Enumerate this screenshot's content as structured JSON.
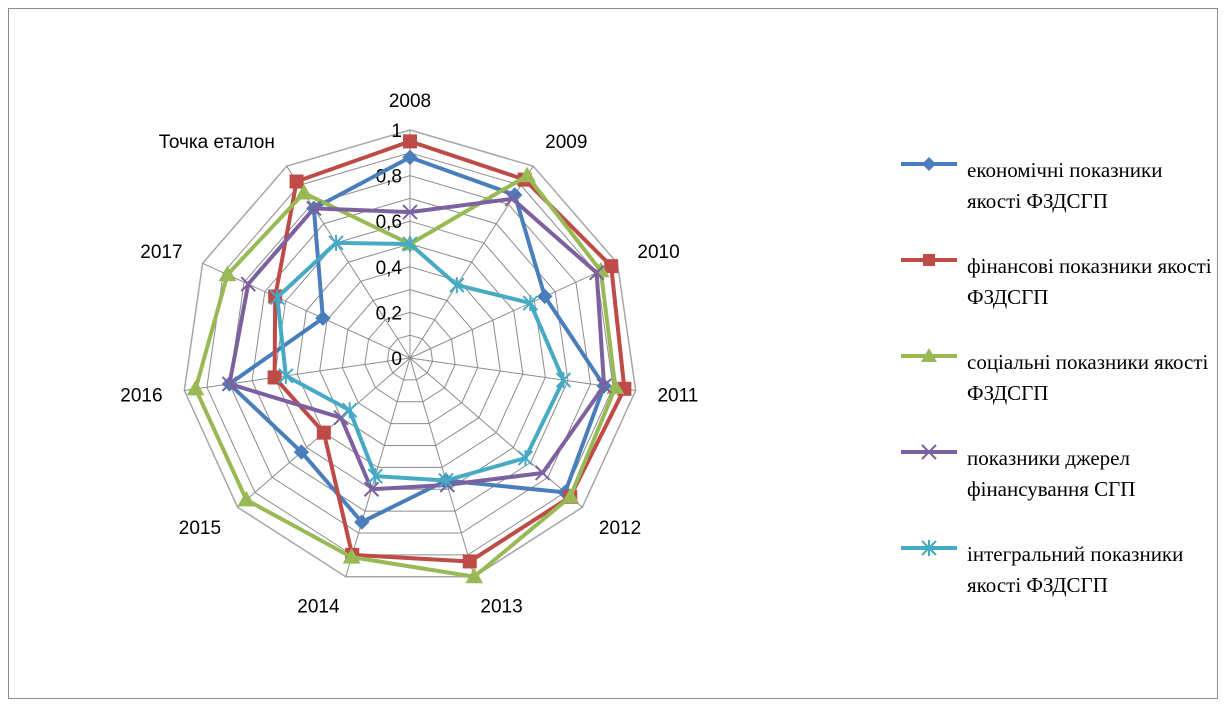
{
  "chart_data": {
    "type": "radar",
    "categories": [
      "2008",
      "2009",
      "2010",
      "2011",
      "2012",
      "2013",
      "2014",
      "2015",
      "2016",
      "2017",
      "Точка еталон"
    ],
    "rlim": [
      0,
      1
    ],
    "ticks": [
      "0",
      "0,2",
      "0,4",
      "0,6",
      "0,8",
      "1"
    ],
    "grid": true,
    "legend_position": "right",
    "series": [
      {
        "name": "економічні показники якості ФЗДСГП",
        "color": "#4a7ebb",
        "marker": "diamond",
        "values": [
          0.88,
          0.85,
          0.65,
          0.86,
          0.9,
          0.56,
          0.75,
          0.63,
          0.8,
          0.42,
          0.78
        ]
      },
      {
        "name": "фінансові показники якості ФЗДСГП",
        "color": "#be4b48",
        "marker": "square",
        "values": [
          0.95,
          0.93,
          0.97,
          0.95,
          0.93,
          0.93,
          0.9,
          0.5,
          0.6,
          0.65,
          0.92
        ]
      },
      {
        "name": "соціальні показники якості ФЗДСГП",
        "color": "#98b954",
        "marker": "triangle",
        "values": [
          0.5,
          0.95,
          0.92,
          0.91,
          0.93,
          1.0,
          0.91,
          0.95,
          0.95,
          0.88,
          0.86
        ]
      },
      {
        "name": "показники джерел фінансування СГП",
        "color": "#7d60a0",
        "marker": "x",
        "values": [
          0.64,
          0.83,
          0.9,
          0.86,
          0.77,
          0.58,
          0.6,
          0.4,
          0.8,
          0.78,
          0.78
        ]
      },
      {
        "name": "інтегральний показники якості ФЗДСГП",
        "color": "#46aac5",
        "marker": "star",
        "values": [
          0.5,
          0.38,
          0.58,
          0.68,
          0.67,
          0.56,
          0.54,
          0.35,
          0.55,
          0.64,
          0.6
        ]
      }
    ]
  }
}
